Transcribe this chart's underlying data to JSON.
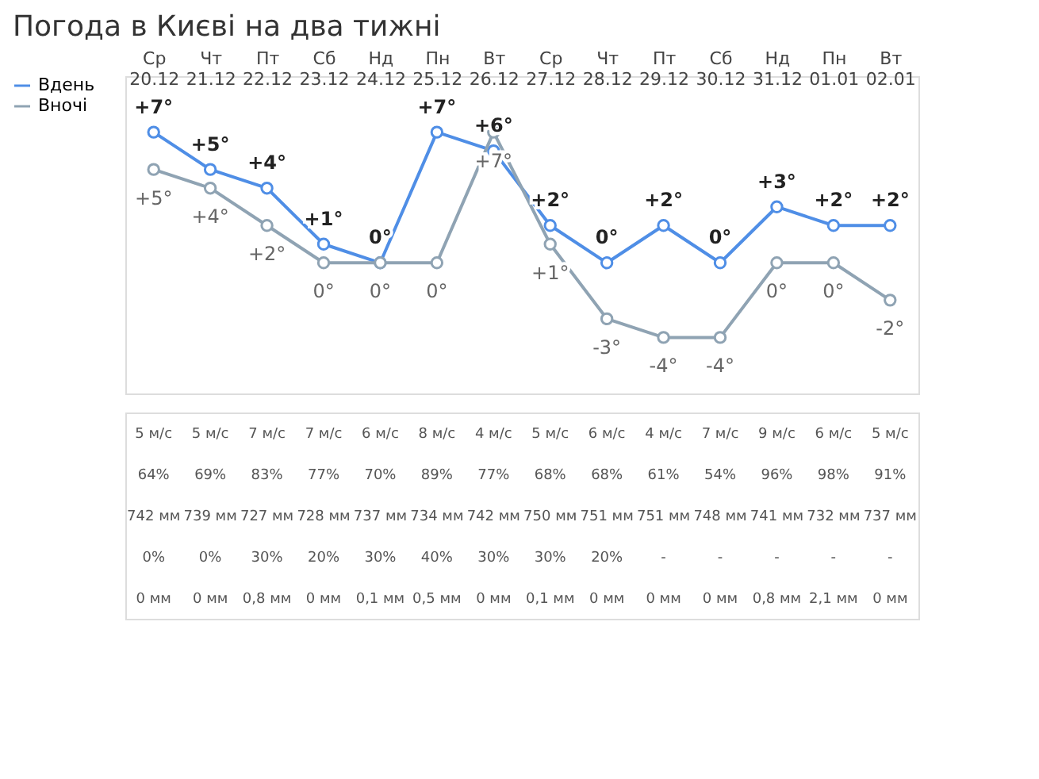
{
  "chart_data": {
    "type": "line",
    "title": "Погода в Києві на два тижні",
    "categories": [
      "Ср\n20.12",
      "Чт\n21.12",
      "Пт\n22.12",
      "Сб\n23.12",
      "Нд\n24.12",
      "Пн\n25.12",
      "Вт\n26.12",
      "Ср\n27.12",
      "Чт\n28.12",
      "Пт\n29.12",
      "Сб\n30.12",
      "Нд\n31.12",
      "Пн\n01.01",
      "Вт\n02.01"
    ],
    "series": [
      {
        "name": "Вдень",
        "color": "#4f8ee6",
        "axis": "y",
        "values": [
          7,
          5,
          4,
          1,
          0,
          7,
          6,
          2,
          0,
          2,
          0,
          3,
          2,
          2
        ],
        "value_labels": [
          "+7°",
          "+5°",
          "+4°",
          "+1°",
          "0°",
          "+7°",
          "+6°",
          "+2°",
          "0°",
          "+2°",
          "0°",
          "+3°",
          "+2°",
          "+2°"
        ]
      },
      {
        "name": "Вночі",
        "color": "#8fa3b3",
        "axis": "y",
        "values": [
          5,
          4,
          2,
          0,
          0,
          0,
          7,
          1,
          -3,
          -4,
          -4,
          0,
          0,
          -2
        ],
        "value_labels": [
          "+5°",
          "+4°",
          "+2°",
          "0°",
          "0°",
          "0°",
          "+7°",
          "+1°",
          "-3°",
          "-4°",
          "-4°",
          "0°",
          "0°",
          "-2°"
        ]
      }
    ],
    "ylim": [
      -7,
      10
    ],
    "tick_labels": "x",
    "marker": "circle",
    "line_style": "solid",
    "legend": "left",
    "annotations": [
      "5 м/с",
      "5 м/с",
      "7 м/с",
      "7 м/с",
      "6 м/с",
      "8 м/с",
      "4 м/с",
      "5 м/с",
      "6 м/с",
      "4 м/с",
      "7 м/с",
      "9 м/с",
      "6 м/с",
      "5 м/с",
      "64%",
      "69%",
      "83%",
      "77%",
      "70%",
      "89%",
      "77%",
      "68%",
      "68%",
      "61%",
      "54%",
      "96%",
      "98%",
      "91%",
      "742 мм",
      "739 мм",
      "727 мм",
      "728 мм",
      "737 мм",
      "734 мм",
      "742 мм",
      "750 мм",
      "751 мм",
      "751 мм",
      "748 мм",
      "741 мм",
      "732 мм",
      "737 мм",
      "0%",
      "0%",
      "30%",
      "20%",
      "30%",
      "40%",
      "30%",
      "30%",
      "20%",
      "-",
      "-",
      "-",
      "-",
      "-",
      "0 мм",
      "0 мм",
      "0,8 мм",
      "0 мм",
      "0,1 мм",
      "0,5 мм",
      "0 мм",
      "0,1 мм",
      "0 мм",
      "0 мм",
      "0 мм",
      "0,8 мм",
      "2,1 мм",
      "0 мм"
    ]
  }
}
